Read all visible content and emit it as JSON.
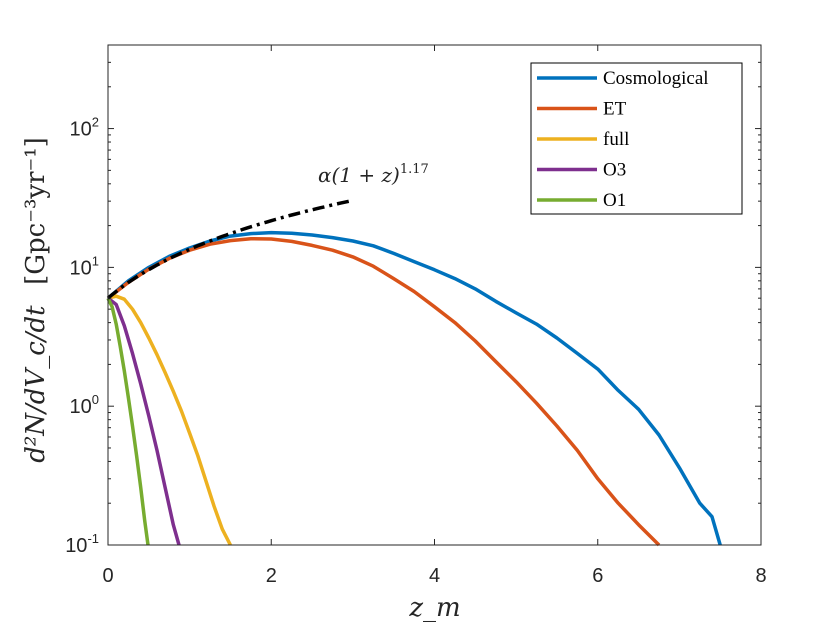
{
  "chart_data": {
    "type": "line",
    "yscale": "log",
    "xlabel": "z_m",
    "ylabel_main": "d²N/dV_c/dt",
    "ylabel_unit": "[Gpc⁻³yr⁻¹]",
    "xlim": [
      0,
      8
    ],
    "ylim": [
      0.1,
      400
    ],
    "xticks": [
      {
        "value": 0,
        "label": "0"
      },
      {
        "value": 2,
        "label": "2"
      },
      {
        "value": 4,
        "label": "4"
      },
      {
        "value": 6,
        "label": "6"
      },
      {
        "value": 8,
        "label": "8"
      }
    ],
    "yticks": [
      {
        "value": 0.1,
        "base": "10",
        "exp": "-1"
      },
      {
        "value": 1,
        "base": "10",
        "exp": "0"
      },
      {
        "value": 10,
        "base": "10",
        "exp": "1"
      },
      {
        "value": 100,
        "base": "10",
        "exp": "2"
      }
    ],
    "series": [
      {
        "name": "Cosmological",
        "color": "#0072BD",
        "x": [
          0,
          0.25,
          0.5,
          0.75,
          1.0,
          1.25,
          1.5,
          1.75,
          2.0,
          2.25,
          2.5,
          2.75,
          3.0,
          3.25,
          3.5,
          3.75,
          4.0,
          4.25,
          4.5,
          4.75,
          5.0,
          5.25,
          5.5,
          5.75,
          6.0,
          6.25,
          6.5,
          6.75,
          7.0,
          7.25,
          7.4,
          7.5
        ],
        "y": [
          6.0,
          8.0,
          10.0,
          12.0,
          13.8,
          15.5,
          16.8,
          17.5,
          17.8,
          17.6,
          17.1,
          16.4,
          15.5,
          14.3,
          12.6,
          11.0,
          9.6,
          8.3,
          7.0,
          5.7,
          4.7,
          3.9,
          3.1,
          2.4,
          1.85,
          1.3,
          0.95,
          0.62,
          0.36,
          0.2,
          0.16,
          0.1
        ]
      },
      {
        "name": "ET",
        "color": "#D95319",
        "x": [
          0,
          0.25,
          0.5,
          0.75,
          1.0,
          1.25,
          1.5,
          1.75,
          2.0,
          2.25,
          2.5,
          2.75,
          3.0,
          3.25,
          3.5,
          3.75,
          4.0,
          4.25,
          4.5,
          4.75,
          5.0,
          5.25,
          5.5,
          5.75,
          6.0,
          6.25,
          6.5,
          6.75
        ],
        "y": [
          6.0,
          7.8,
          9.7,
          11.6,
          13.3,
          14.7,
          15.6,
          16.1,
          16.0,
          15.4,
          14.4,
          13.3,
          11.9,
          10.2,
          8.3,
          6.7,
          5.2,
          4.0,
          2.95,
          2.1,
          1.5,
          1.05,
          0.72,
          0.48,
          0.3,
          0.2,
          0.14,
          0.1
        ]
      },
      {
        "name": "full",
        "color": "#EDB120",
        "x": [
          0,
          0.1,
          0.2,
          0.3,
          0.4,
          0.5,
          0.6,
          0.7,
          0.8,
          0.9,
          1.0,
          1.1,
          1.2,
          1.3,
          1.4,
          1.5
        ],
        "y": [
          6.0,
          6.2,
          5.9,
          5.0,
          4.0,
          3.1,
          2.35,
          1.75,
          1.28,
          0.92,
          0.64,
          0.44,
          0.29,
          0.19,
          0.13,
          0.1
        ]
      },
      {
        "name": "O3",
        "color": "#7E2F8E",
        "x": [
          0,
          0.1,
          0.2,
          0.3,
          0.4,
          0.5,
          0.6,
          0.7,
          0.8,
          0.87
        ],
        "y": [
          6.0,
          5.4,
          3.8,
          2.4,
          1.45,
          0.85,
          0.48,
          0.26,
          0.14,
          0.1
        ]
      },
      {
        "name": "O1",
        "color": "#77AC30",
        "x": [
          0,
          0.05,
          0.1,
          0.15,
          0.2,
          0.25,
          0.3,
          0.35,
          0.4,
          0.45,
          0.49
        ],
        "y": [
          6.0,
          5.2,
          3.9,
          2.7,
          1.8,
          1.15,
          0.72,
          0.44,
          0.26,
          0.15,
          0.1
        ]
      }
    ],
    "fit": {
      "label_prefix": "α(1 + z)",
      "label_exp": "1.17",
      "alpha": 6.0,
      "exponent": 1.17,
      "x_start": 0,
      "x_end": 3.0,
      "color": "#000000",
      "style": "dash-dot"
    },
    "legend_position": "top-right"
  }
}
